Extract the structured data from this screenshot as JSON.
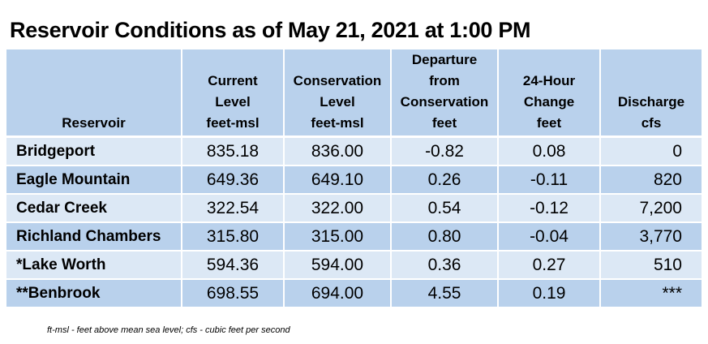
{
  "title": "Reservoir Conditions as of May 21, 2021 at 1:00 PM",
  "headers": [
    {
      "lines": [
        "",
        "",
        "",
        "Reservoir"
      ]
    },
    {
      "lines": [
        "",
        "Current",
        "Level",
        "feet-msl"
      ]
    },
    {
      "lines": [
        "",
        "Conservation",
        "Level",
        "feet-msl"
      ]
    },
    {
      "lines": [
        "Departure",
        "from",
        "Conservation",
        "feet"
      ]
    },
    {
      "lines": [
        "",
        "24-Hour",
        "Change",
        "feet"
      ]
    },
    {
      "lines": [
        "",
        "",
        "Discharge",
        "cfs"
      ]
    }
  ],
  "rows": [
    {
      "name": "Bridgeport",
      "current": "835.18",
      "conservation": "836.00",
      "departure": "-0.82",
      "change": "0.08",
      "discharge": "0"
    },
    {
      "name": "Eagle Mountain",
      "current": "649.36",
      "conservation": "649.10",
      "departure": "0.26",
      "change": "-0.11",
      "discharge": "820"
    },
    {
      "name": "Cedar Creek",
      "current": "322.54",
      "conservation": "322.00",
      "departure": "0.54",
      "change": "-0.12",
      "discharge": "7,200"
    },
    {
      "name": "Richland Chambers",
      "current": "315.80",
      "conservation": "315.00",
      "departure": "0.80",
      "change": "-0.04",
      "discharge": "3,770"
    },
    {
      "name": "*Lake Worth",
      "current": "594.36",
      "conservation": "594.00",
      "departure": "0.36",
      "change": "0.27",
      "discharge": "510"
    },
    {
      "name": "**Benbrook",
      "current": "698.55",
      "conservation": "694.00",
      "departure": "4.55",
      "change": "0.19",
      "discharge": "***"
    }
  ],
  "footnote": "ft-msl - feet above mean sea level; cfs - cubic feet per second",
  "colors": {
    "header_bg": "#b9d1ec",
    "row_light": "#dce8f5",
    "row_dark": "#b9d1ec"
  }
}
